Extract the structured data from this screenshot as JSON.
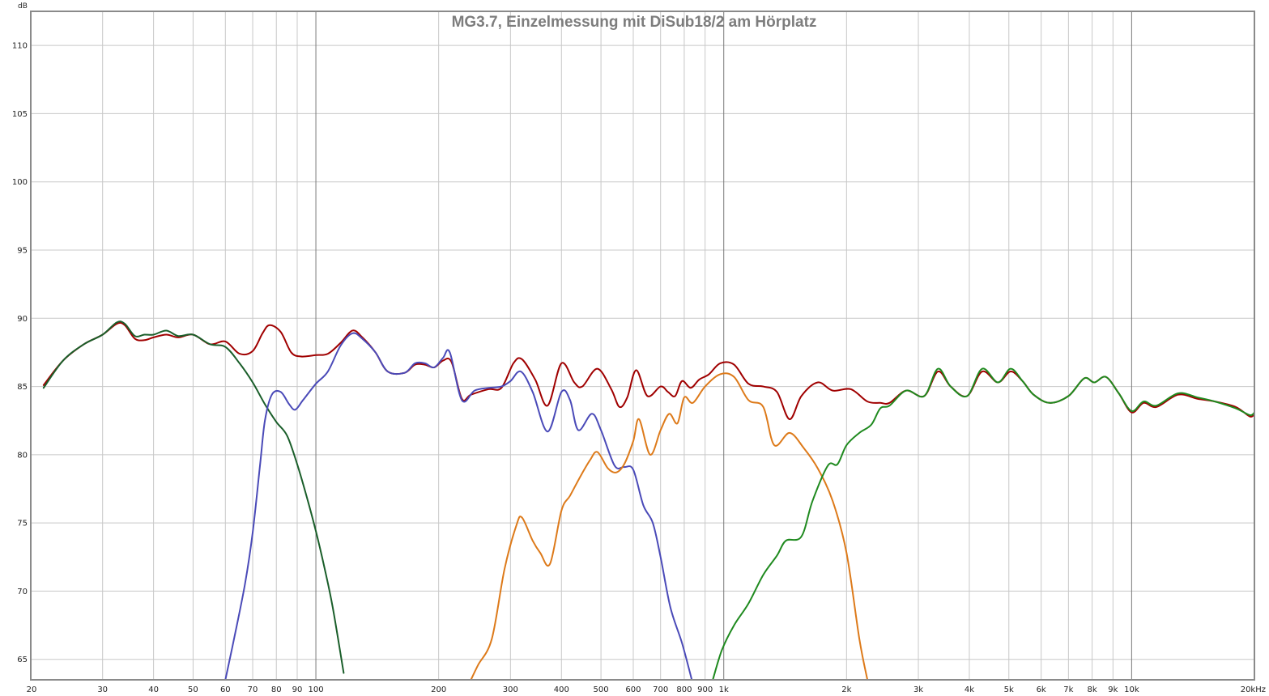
{
  "chart_data": {
    "type": "line",
    "title": "MG3.7, Einzelmessung mit DiSub18/2 am Hörplatz",
    "xlabel": "",
    "ylabel": "dB",
    "x_scale": "log",
    "xlim": [
      20,
      20000
    ],
    "ylim": [
      63.5,
      112.5
    ],
    "grid": true,
    "legend": "none",
    "y_ticks": [
      65,
      70,
      75,
      80,
      85,
      90,
      95,
      100,
      105,
      110
    ],
    "y_tick_labels": [
      "65",
      "70",
      "75",
      "80",
      "85",
      "90",
      "95",
      "100",
      "105",
      "110"
    ],
    "x_ticks": [
      20,
      30,
      40,
      50,
      60,
      70,
      80,
      90,
      100,
      200,
      300,
      400,
      500,
      600,
      700,
      800,
      900,
      1000,
      2000,
      3000,
      4000,
      5000,
      6000,
      7000,
      8000,
      9000,
      10000,
      20000
    ],
    "x_tick_labels": [
      "20",
      "30",
      "40",
      "50",
      "60",
      "70",
      "80",
      "90",
      "100",
      "200",
      "300",
      "400",
      "500",
      "600",
      "700",
      "800",
      "900",
      "1k",
      "2k",
      "3k",
      "4k",
      "5k",
      "6k",
      "7k",
      "8k",
      "9k",
      "10k",
      "20kHz"
    ],
    "x_major_gridlines": [
      100,
      1000,
      10000
    ],
    "series": [
      {
        "color": "#a00000",
        "points": [
          [
            21.5,
            85.1
          ],
          [
            24,
            86.9
          ],
          [
            27,
            88.1
          ],
          [
            30,
            88.8
          ],
          [
            32.5,
            89.6
          ],
          [
            34,
            89.5
          ],
          [
            36,
            88.5
          ],
          [
            38,
            88.4
          ],
          [
            40,
            88.6
          ],
          [
            43,
            88.8
          ],
          [
            46,
            88.6
          ],
          [
            50,
            88.8
          ],
          [
            55,
            88.1
          ],
          [
            60,
            88.3
          ],
          [
            65,
            87.4
          ],
          [
            70,
            87.6
          ],
          [
            74,
            88.9
          ],
          [
            77,
            89.5
          ],
          [
            82,
            89.0
          ],
          [
            87,
            87.5
          ],
          [
            92,
            87.2
          ],
          [
            100,
            87.3
          ],
          [
            107,
            87.4
          ],
          [
            115,
            88.2
          ],
          [
            123,
            89.1
          ],
          [
            130,
            88.6
          ],
          [
            140,
            87.5
          ],
          [
            150,
            86.1
          ],
          [
            165,
            86.0
          ],
          [
            175,
            86.6
          ],
          [
            185,
            86.6
          ],
          [
            195,
            86.4
          ],
          [
            205,
            86.9
          ],
          [
            215,
            86.8
          ],
          [
            228,
            84.1
          ],
          [
            240,
            84.4
          ],
          [
            265,
            84.8
          ],
          [
            285,
            84.9
          ],
          [
            305,
            86.7
          ],
          [
            320,
            87.0
          ],
          [
            345,
            85.5
          ],
          [
            370,
            83.6
          ],
          [
            400,
            86.7
          ],
          [
            430,
            85.3
          ],
          [
            450,
            85.0
          ],
          [
            490,
            86.3
          ],
          [
            530,
            84.8
          ],
          [
            555,
            83.5
          ],
          [
            580,
            84.2
          ],
          [
            610,
            86.2
          ],
          [
            650,
            84.3
          ],
          [
            700,
            85.0
          ],
          [
            730,
            84.6
          ],
          [
            760,
            84.3
          ],
          [
            790,
            85.4
          ],
          [
            830,
            84.9
          ],
          [
            870,
            85.5
          ],
          [
            920,
            85.9
          ],
          [
            980,
            86.7
          ],
          [
            1060,
            86.6
          ],
          [
            1150,
            85.2
          ],
          [
            1250,
            85.0
          ],
          [
            1350,
            84.6
          ],
          [
            1450,
            82.6
          ],
          [
            1550,
            84.3
          ],
          [
            1700,
            85.3
          ],
          [
            1850,
            84.7
          ],
          [
            2050,
            84.8
          ],
          [
            2250,
            83.9
          ],
          [
            2420,
            83.8
          ],
          [
            2550,
            83.8
          ],
          [
            2800,
            84.7
          ],
          [
            3100,
            84.3
          ],
          [
            3350,
            86.1
          ],
          [
            3600,
            85.0
          ],
          [
            3950,
            84.3
          ],
          [
            4300,
            86.1
          ],
          [
            4700,
            85.3
          ],
          [
            5050,
            86.1
          ],
          [
            5400,
            85.4
          ],
          [
            5750,
            84.4
          ],
          [
            6300,
            83.8
          ],
          [
            7000,
            84.3
          ],
          [
            7650,
            85.6
          ],
          [
            8100,
            85.3
          ],
          [
            8650,
            85.7
          ],
          [
            9300,
            84.5
          ],
          [
            10000,
            83.1
          ],
          [
            10700,
            83.8
          ],
          [
            11500,
            83.5
          ],
          [
            13000,
            84.4
          ],
          [
            14500,
            84.1
          ],
          [
            16000,
            83.9
          ],
          [
            18000,
            83.5
          ],
          [
            19500,
            82.8
          ],
          [
            20000,
            83.0
          ]
        ]
      },
      {
        "color": "#1a5e2a",
        "points": [
          [
            21.5,
            84.9
          ],
          [
            24,
            86.9
          ],
          [
            27,
            88.1
          ],
          [
            30,
            88.8
          ],
          [
            32.5,
            89.7
          ],
          [
            34,
            89.6
          ],
          [
            36,
            88.7
          ],
          [
            38,
            88.8
          ],
          [
            40,
            88.8
          ],
          [
            43,
            89.1
          ],
          [
            46,
            88.7
          ],
          [
            50,
            88.8
          ],
          [
            55,
            88.1
          ],
          [
            60,
            87.9
          ],
          [
            65,
            86.7
          ],
          [
            70,
            85.3
          ],
          [
            75,
            83.7
          ],
          [
            80,
            82.4
          ],
          [
            85,
            81.4
          ],
          [
            90,
            79.3
          ],
          [
            95,
            76.9
          ],
          [
            100,
            74.4
          ],
          [
            105,
            71.7
          ],
          [
            110,
            68.8
          ],
          [
            117,
            64.0
          ]
        ]
      },
      {
        "color": "#4a4ab8",
        "points": [
          [
            60,
            63.5
          ],
          [
            63,
            66.5
          ],
          [
            67,
            70.5
          ],
          [
            70,
            74.3
          ],
          [
            73,
            79.3
          ],
          [
            75,
            82.5
          ],
          [
            78,
            84.4
          ],
          [
            82,
            84.6
          ],
          [
            86,
            83.7
          ],
          [
            89,
            83.3
          ],
          [
            93,
            84.0
          ],
          [
            100,
            85.2
          ],
          [
            107,
            86.1
          ],
          [
            115,
            88.0
          ],
          [
            123,
            88.9
          ],
          [
            130,
            88.5
          ],
          [
            140,
            87.5
          ],
          [
            150,
            86.1
          ],
          [
            165,
            86.0
          ],
          [
            175,
            86.7
          ],
          [
            185,
            86.7
          ],
          [
            195,
            86.4
          ],
          [
            205,
            87.1
          ],
          [
            213,
            87.5
          ],
          [
            228,
            84.0
          ],
          [
            245,
            84.7
          ],
          [
            265,
            84.9
          ],
          [
            285,
            85.0
          ],
          [
            300,
            85.4
          ],
          [
            318,
            86.1
          ],
          [
            340,
            84.6
          ],
          [
            370,
            81.7
          ],
          [
            400,
            84.6
          ],
          [
            420,
            84.0
          ],
          [
            440,
            81.8
          ],
          [
            475,
            83.0
          ],
          [
            500,
            81.8
          ],
          [
            540,
            79.2
          ],
          [
            570,
            79.1
          ],
          [
            600,
            78.9
          ],
          [
            635,
            76.3
          ],
          [
            670,
            75.0
          ],
          [
            700,
            72.5
          ],
          [
            740,
            68.8
          ],
          [
            790,
            66.2
          ],
          [
            835,
            63.5
          ]
        ]
      },
      {
        "color": "#dd7a1a",
        "points": [
          [
            240,
            63.5
          ],
          [
            250,
            64.6
          ],
          [
            270,
            66.5
          ],
          [
            290,
            71.6
          ],
          [
            310,
            74.8
          ],
          [
            320,
            75.4
          ],
          [
            340,
            73.7
          ],
          [
            355,
            72.8
          ],
          [
            375,
            72.0
          ],
          [
            400,
            75.9
          ],
          [
            420,
            77.0
          ],
          [
            445,
            78.4
          ],
          [
            470,
            79.6
          ],
          [
            490,
            80.2
          ],
          [
            520,
            79.0
          ],
          [
            545,
            78.7
          ],
          [
            570,
            79.3
          ],
          [
            600,
            81.0
          ],
          [
            620,
            82.6
          ],
          [
            660,
            80.0
          ],
          [
            700,
            81.8
          ],
          [
            735,
            83.0
          ],
          [
            770,
            82.3
          ],
          [
            800,
            84.2
          ],
          [
            840,
            83.8
          ],
          [
            900,
            85.0
          ],
          [
            980,
            85.9
          ],
          [
            1060,
            85.7
          ],
          [
            1150,
            84.0
          ],
          [
            1250,
            83.5
          ],
          [
            1330,
            80.7
          ],
          [
            1450,
            81.6
          ],
          [
            1570,
            80.5
          ],
          [
            1700,
            79.0
          ],
          [
            1850,
            76.6
          ],
          [
            2000,
            72.8
          ],
          [
            2150,
            66.5
          ],
          [
            2250,
            63.5
          ]
        ]
      },
      {
        "color": "#1f8a1f",
        "points": [
          [
            940,
            63.5
          ],
          [
            990,
            65.7
          ],
          [
            1060,
            67.5
          ],
          [
            1150,
            69.1
          ],
          [
            1250,
            71.2
          ],
          [
            1350,
            72.6
          ],
          [
            1420,
            73.7
          ],
          [
            1550,
            74.0
          ],
          [
            1650,
            76.6
          ],
          [
            1800,
            79.2
          ],
          [
            1900,
            79.3
          ],
          [
            2000,
            80.7
          ],
          [
            2150,
            81.6
          ],
          [
            2300,
            82.2
          ],
          [
            2420,
            83.4
          ],
          [
            2550,
            83.6
          ],
          [
            2800,
            84.7
          ],
          [
            3100,
            84.3
          ],
          [
            3350,
            86.3
          ],
          [
            3600,
            85.0
          ],
          [
            3950,
            84.3
          ],
          [
            4300,
            86.3
          ],
          [
            4700,
            85.3
          ],
          [
            5050,
            86.3
          ],
          [
            5400,
            85.4
          ],
          [
            5750,
            84.4
          ],
          [
            6300,
            83.8
          ],
          [
            7000,
            84.3
          ],
          [
            7650,
            85.6
          ],
          [
            8100,
            85.3
          ],
          [
            8650,
            85.7
          ],
          [
            9300,
            84.5
          ],
          [
            10000,
            83.2
          ],
          [
            10700,
            83.9
          ],
          [
            11500,
            83.6
          ],
          [
            13000,
            84.5
          ],
          [
            14500,
            84.2
          ],
          [
            16000,
            83.9
          ],
          [
            18000,
            83.4
          ],
          [
            19500,
            82.9
          ],
          [
            20000,
            83.1
          ]
        ]
      }
    ]
  }
}
